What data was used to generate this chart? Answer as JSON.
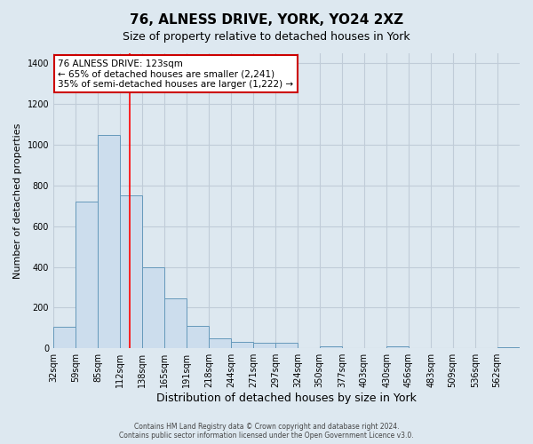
{
  "title": "76, ALNESS DRIVE, YORK, YO24 2XZ",
  "subtitle": "Size of property relative to detached houses in York",
  "xlabel": "Distribution of detached houses by size in York",
  "ylabel": "Number of detached properties",
  "categories": [
    "32sqm",
    "59sqm",
    "85sqm",
    "112sqm",
    "138sqm",
    "165sqm",
    "191sqm",
    "218sqm",
    "244sqm",
    "271sqm",
    "297sqm",
    "324sqm",
    "350sqm",
    "377sqm",
    "403sqm",
    "430sqm",
    "456sqm",
    "483sqm",
    "509sqm",
    "536sqm",
    "562sqm"
  ],
  "bar_values": [
    105,
    720,
    1050,
    750,
    400,
    245,
    110,
    50,
    30,
    25,
    25,
    0,
    10,
    0,
    0,
    10,
    0,
    0,
    0,
    0,
    5
  ],
  "bar_color": "#ccdded",
  "bar_edge_color": "#6699bb",
  "ylim": [
    0,
    1450
  ],
  "yticks": [
    0,
    200,
    400,
    600,
    800,
    1000,
    1200,
    1400
  ],
  "red_line_x": 123,
  "bin_edges": [
    32,
    59,
    85,
    112,
    138,
    165,
    191,
    218,
    244,
    271,
    297,
    324,
    350,
    377,
    403,
    430,
    456,
    483,
    509,
    536,
    562,
    589
  ],
  "annotation_title": "76 ALNESS DRIVE: 123sqm",
  "annotation_line1": "← 65% of detached houses are smaller (2,241)",
  "annotation_line2": "35% of semi-detached houses are larger (1,222) →",
  "annotation_box_color": "#ffffff",
  "annotation_box_edge": "#cc0000",
  "footer_line1": "Contains HM Land Registry data © Crown copyright and database right 2024.",
  "footer_line2": "Contains public sector information licensed under the Open Government Licence v3.0.",
  "background_color": "#dde8f0",
  "plot_background": "#dde8f0",
  "grid_color": "#c0ccd8",
  "title_fontsize": 11,
  "subtitle_fontsize": 9,
  "ylabel_fontsize": 8,
  "xlabel_fontsize": 9,
  "tick_fontsize": 7,
  "annotation_fontsize": 7.5,
  "footer_fontsize": 5.5
}
